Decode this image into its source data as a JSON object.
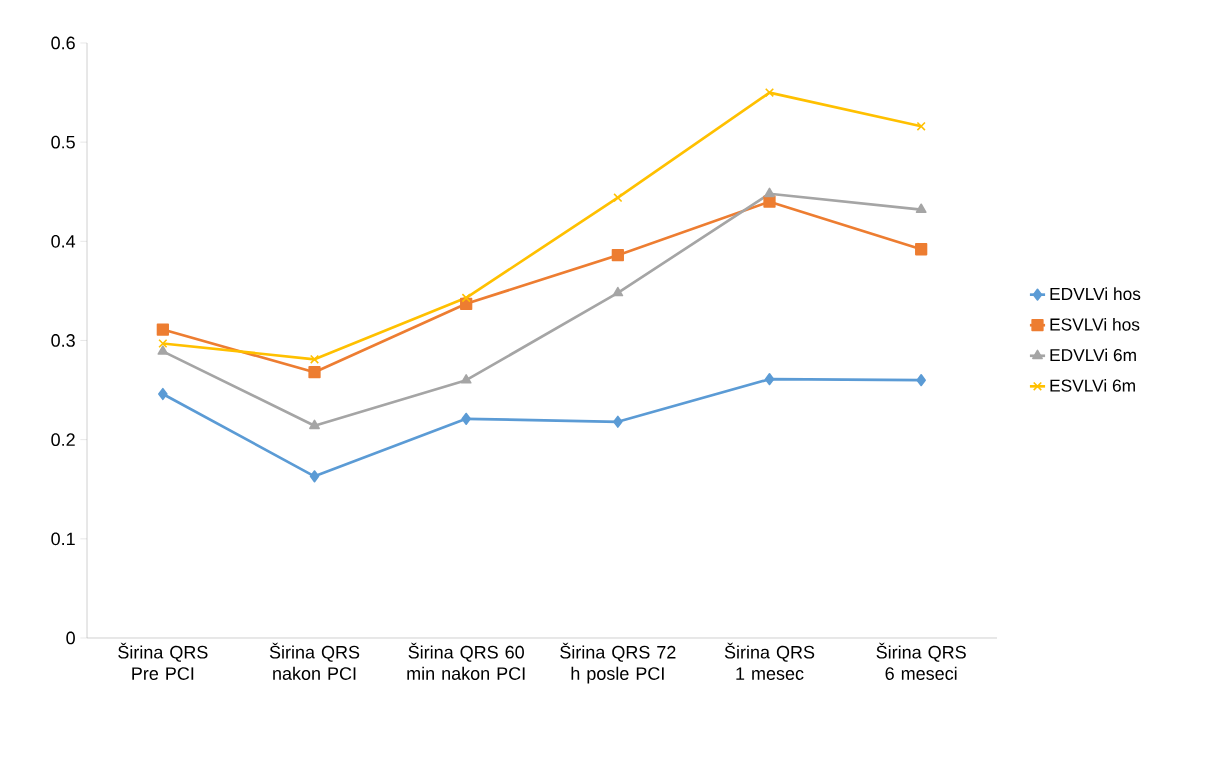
{
  "chart_data": {
    "type": "line",
    "categories": [
      "Širina QRS Pre PCI",
      "Širina QRS nakon PCI",
      "Širina QRS 60 min nakon PCI",
      "Širina QRS 72 h posle PCI",
      "Širina QRS 1 mesec",
      "Širina QRS 6 meseci"
    ],
    "series": [
      {
        "name": "EDVLVi hos",
        "color": "#5b9bd5",
        "marker": "diamond",
        "values": [
          0.246,
          0.163,
          0.221,
          0.218,
          0.261,
          0.26
        ]
      },
      {
        "name": "ESVLVi hos",
        "color": "#ed7d31",
        "marker": "square",
        "values": [
          0.311,
          0.268,
          0.337,
          0.386,
          0.44,
          0.392
        ]
      },
      {
        "name": "EDVLVi 6m",
        "color": "#a5a5a5",
        "marker": "triangle",
        "values": [
          0.289,
          0.214,
          0.26,
          0.348,
          0.448,
          0.432
        ]
      },
      {
        "name": "ESVLVi 6m",
        "color": "#ffc000",
        "marker": "cross",
        "values": [
          0.297,
          0.281,
          0.343,
          0.444,
          0.55,
          0.516
        ]
      }
    ],
    "ylim": [
      0,
      0.6
    ],
    "yticks": [
      0,
      0.1,
      0.2,
      0.3,
      0.4,
      0.5,
      0.6
    ],
    "grid": false,
    "legend": "right",
    "line_style": "solid"
  }
}
